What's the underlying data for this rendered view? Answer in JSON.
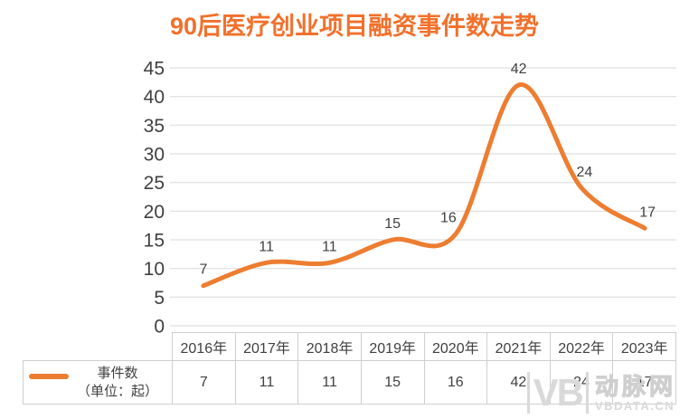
{
  "title": "90后医疗创业项目融资事件数走势",
  "chart_data": {
    "type": "line",
    "title": "90后医疗创业项目融资事件数走势",
    "categories": [
      "2016年",
      "2017年",
      "2018年",
      "2019年",
      "2020年",
      "2021年",
      "2022年",
      "2023年"
    ],
    "series": [
      {
        "name": "事件数（单位：起）",
        "values": [
          7,
          11,
          11,
          15,
          16,
          42,
          24,
          17
        ]
      }
    ],
    "ylim": [
      0,
      45
    ],
    "ytick_step": 5,
    "yticks": [
      0,
      5,
      10,
      15,
      20,
      25,
      30,
      35,
      40,
      45
    ],
    "grid": "horizontal",
    "line_style": "smooth",
    "data_labels_shown": true,
    "legend_position": "bottom-left-table"
  },
  "legend": {
    "line1": "事件数",
    "line2": "（单位：起）"
  },
  "watermark": {
    "logo": "VB",
    "name": "动脉网",
    "site": "VBDATA.CN"
  },
  "colors": {
    "line": "#ED7D31",
    "title": "#F2702B",
    "grid": "#D9D9D9",
    "text": "#404040",
    "table_border": "#CFCECE",
    "watermark": "#D9D9D9"
  }
}
